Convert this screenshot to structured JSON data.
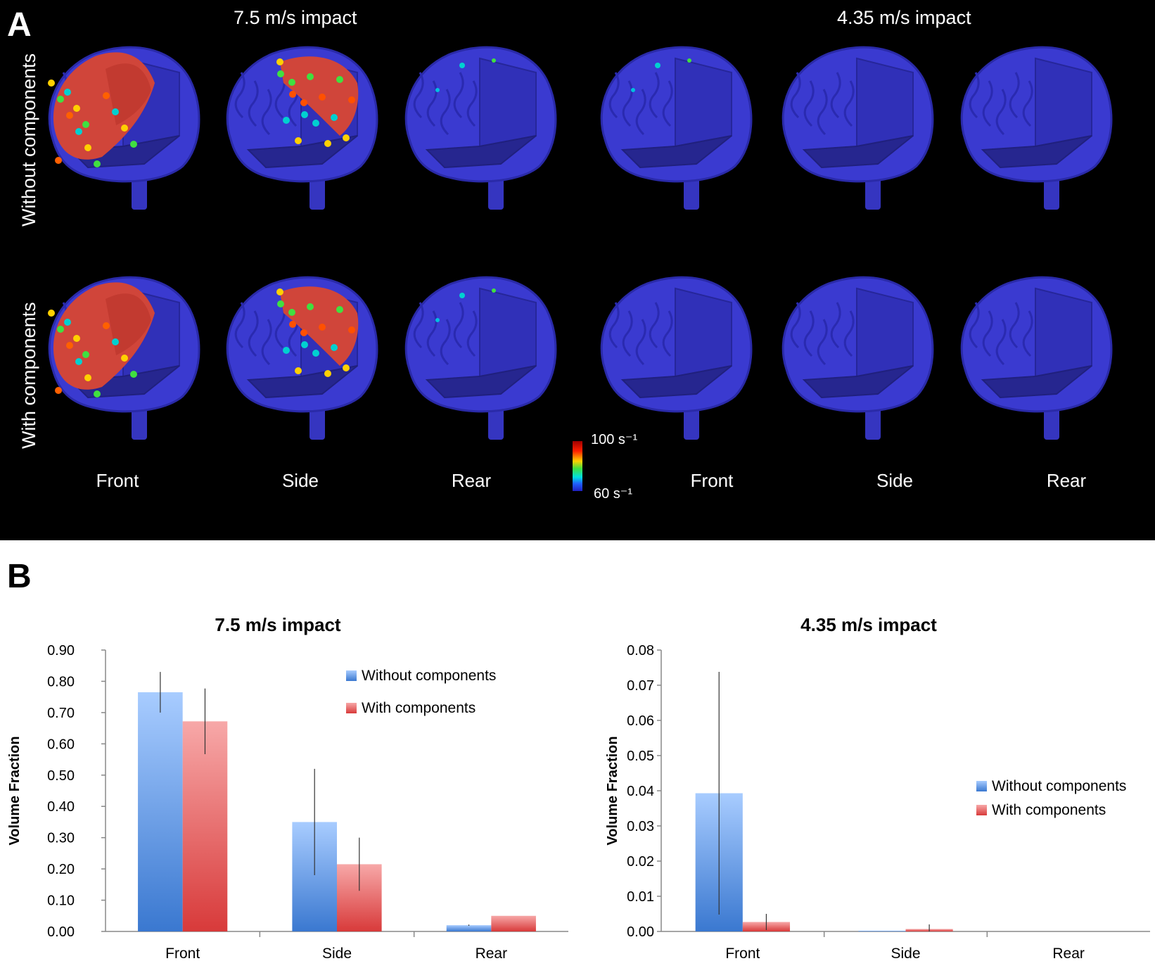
{
  "panel_a": {
    "letter": "A",
    "impact_titles": [
      "7.5 m/s impact",
      "4.35 m/s impact"
    ],
    "row_labels": [
      "Without components",
      "With components"
    ],
    "view_labels": [
      "Front",
      "Side",
      "Rear",
      "Front",
      "Side",
      "Rear"
    ],
    "colorbar": {
      "max_label": "100 s⁻¹",
      "min_label": "60 s⁻¹"
    },
    "colors": {
      "brain_blue": "#3a3ad0",
      "high": "#d0453a",
      "background": "#000000"
    }
  },
  "panel_b": {
    "letter": "B"
  },
  "chart_data": [
    {
      "type": "bar",
      "title": "7.5 m/s impact",
      "ylabel": "Volume Fraction",
      "xlabel": "",
      "categories": [
        "Front",
        "Side",
        "Rear"
      ],
      "ylim": [
        0,
        0.9
      ],
      "yticks": [
        "0.00",
        "0.10",
        "0.20",
        "0.30",
        "0.40",
        "0.50",
        "0.60",
        "0.70",
        "0.80",
        "0.90"
      ],
      "legend_position": "right",
      "series": [
        {
          "name": "Without components",
          "color": "#4a88d8",
          "values": [
            0.765,
            0.35,
            0.02
          ],
          "errors": [
            0.065,
            0.17,
            0.002
          ]
        },
        {
          "name": "With components",
          "color": "#e05555",
          "values": [
            0.672,
            0.215,
            0.05
          ],
          "errors": [
            0.105,
            0.085,
            0
          ]
        }
      ]
    },
    {
      "type": "bar",
      "title": "4.35 m/s impact",
      "ylabel": "Volume Fraction",
      "xlabel": "",
      "categories": [
        "Front",
        "Side",
        "Rear"
      ],
      "ylim": [
        0,
        0.08
      ],
      "yticks": [
        "0.00",
        "0.01",
        "0.02",
        "0.03",
        "0.04",
        "0.05",
        "0.06",
        "0.07",
        "0.08"
      ],
      "legend_position": "right",
      "series": [
        {
          "name": "Without components",
          "color": "#4a88d8",
          "values": [
            0.0393,
            0.0002,
            0
          ],
          "errors": [
            0.0345,
            0,
            0
          ]
        },
        {
          "name": "With components",
          "color": "#e05555",
          "values": [
            0.0027,
            0.0007,
            0
          ],
          "errors": [
            0.0023,
            0.0013,
            0
          ]
        }
      ]
    }
  ]
}
